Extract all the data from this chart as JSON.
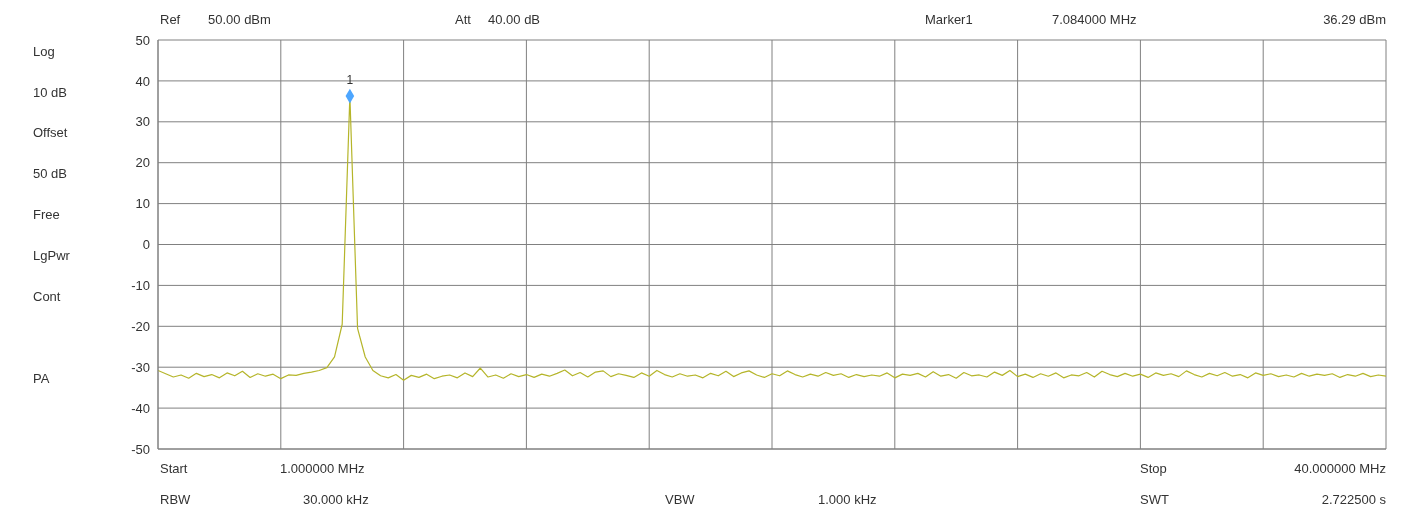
{
  "chart_data": {
    "type": "line",
    "annotations": [
      "Ref",
      "50.00 dBm",
      "Att",
      "40.00 dB",
      "Marker1",
      "7.084000 MHz",
      "36.29 dBm",
      "Log",
      "10 dB",
      "Offset",
      "50 dB",
      "Free",
      "LgPwr",
      "Cont",
      "PA",
      "Start",
      "1.000000 MHz",
      "Stop",
      "40.000000 MHz",
      "RBW",
      "30.000 kHz",
      "VBW",
      "1.000 kHz",
      "SWT",
      "2.722500 s",
      {
        "text": "1",
        "y": 36.29
      }
    ],
    "categories": [
      null,
      null,
      null,
      null,
      null,
      null,
      null,
      null,
      null,
      null,
      null,
      null,
      null,
      null,
      null,
      null,
      null,
      null,
      null,
      null,
      null,
      null,
      null,
      null,
      null,
      null,
      null,
      null,
      null,
      null,
      null,
      null,
      null,
      null,
      null,
      null,
      null,
      null,
      null,
      null,
      null,
      null,
      null,
      null,
      null,
      null,
      null,
      null,
      null,
      null,
      null,
      null,
      null,
      null,
      null,
      null,
      null,
      null,
      null,
      null,
      null,
      null,
      null,
      null,
      null,
      null,
      null,
      null,
      null,
      null,
      null,
      null,
      null,
      null,
      null,
      null,
      null,
      null,
      null,
      null,
      null,
      null,
      null,
      null,
      null,
      null,
      null,
      null,
      null,
      null,
      null,
      null,
      null,
      null,
      null,
      null,
      null,
      null,
      null,
      null,
      null,
      null,
      null,
      null,
      null,
      null,
      null,
      null,
      null,
      null,
      null,
      null,
      null,
      null,
      null,
      null,
      null,
      null,
      null,
      null,
      null,
      null,
      null,
      null,
      null,
      null,
      null,
      null,
      null,
      null,
      null,
      null,
      null,
      null,
      null,
      null,
      null,
      null,
      null,
      null,
      null,
      null,
      null,
      null,
      null,
      null,
      null,
      null,
      null,
      null,
      null,
      null,
      null,
      null,
      null,
      null,
      null,
      null,
      null,
      null,
      null
    ],
    "series": [
      {
        "color": "#b5b52a",
        "values": [
          -30.8,
          -31.6,
          -32.4,
          -31.9,
          -32.7,
          -31.5,
          -32.3,
          -31.8,
          -32.6,
          -31.4,
          -32.1,
          -31.0,
          -32.5,
          -31.6,
          -32.2,
          -31.7,
          -32.8,
          -31.9,
          -32.0,
          -31.5,
          -31.2,
          -30.8,
          -30.1,
          -27.5,
          -19.5,
          36.29,
          -20.5,
          -27.5,
          -30.8,
          -32.1,
          -32.6,
          -31.8,
          -33.2,
          -32.0,
          -32.5,
          -31.7,
          -32.8,
          -32.2,
          -31.9,
          -32.6,
          -31.4,
          -32.3,
          -30.2,
          -32.4,
          -31.9,
          -32.7,
          -31.6,
          -32.3,
          -31.8,
          -32.5,
          -31.7,
          -32.2,
          -31.5,
          -30.7,
          -32.1,
          -31.3,
          -32.4,
          -31.2,
          -30.9,
          -32.3,
          -31.6,
          -32.0,
          -32.5,
          -31.4,
          -32.2,
          -30.8,
          -31.8,
          -32.4,
          -31.6,
          -32.2,
          -31.9,
          -32.6,
          -31.5,
          -32.1,
          -31.0,
          -32.3,
          -31.4,
          -30.9,
          -31.9,
          -32.5,
          -31.6,
          -32.1,
          -30.9,
          -31.8,
          -32.4,
          -31.7,
          -32.2,
          -31.3,
          -32.0,
          -31.6,
          -32.5,
          -31.8,
          -32.3,
          -31.9,
          -32.2,
          -31.4,
          -32.6,
          -31.7,
          -32.0,
          -31.5,
          -32.4,
          -31.1,
          -32.2,
          -31.8,
          -32.7,
          -31.3,
          -32.1,
          -31.9,
          -32.4,
          -31.2,
          -32.0,
          -30.8,
          -32.3,
          -31.7,
          -32.5,
          -31.6,
          -32.2,
          -31.4,
          -32.6,
          -31.9,
          -32.1,
          -31.3,
          -32.4,
          -31.0,
          -31.8,
          -32.3,
          -31.5,
          -32.2,
          -31.7,
          -32.5,
          -31.4,
          -32.0,
          -31.6,
          -32.3,
          -30.9,
          -31.8,
          -32.4,
          -31.5,
          -32.1,
          -31.3,
          -32.2,
          -31.8,
          -32.6,
          -31.4,
          -32.0,
          -31.6,
          -32.3,
          -31.9,
          -32.4,
          -31.5,
          -32.2,
          -31.7,
          -32.0,
          -31.6,
          -32.5,
          -31.8,
          -32.2,
          -31.5,
          -32.3,
          -31.9,
          -32.2
        ]
      },
      {
        "type": "scatter",
        "color": "#4da6ff",
        "marker": "diamond",
        "values": [
          null,
          null,
          null,
          null,
          null,
          null,
          null,
          null,
          null,
          null,
          null,
          null,
          null,
          null,
          null,
          null,
          null,
          null,
          null,
          null,
          null,
          null,
          null,
          null,
          null,
          36.29,
          null,
          null,
          null,
          null,
          null,
          null,
          null,
          null,
          null,
          null,
          null,
          null,
          null,
          null,
          null,
          null,
          null,
          null,
          null,
          null,
          null,
          null,
          null,
          null,
          null,
          null,
          null,
          null,
          null,
          null,
          null,
          null,
          null,
          null,
          null,
          null,
          null,
          null,
          null,
          null,
          null,
          null,
          null,
          null,
          null,
          null,
          null,
          null,
          null,
          null,
          null,
          null,
          null,
          null,
          null,
          null,
          null,
          null,
          null,
          null,
          null,
          null,
          null,
          null,
          null,
          null,
          null,
          null,
          null,
          null,
          null,
          null,
          null,
          null,
          null,
          null,
          null,
          null,
          null,
          null,
          null,
          null,
          null,
          null,
          null,
          null,
          null,
          null,
          null,
          null,
          null,
          null,
          null,
          null,
          null,
          null,
          null,
          null,
          null,
          null,
          null,
          null,
          null,
          null,
          null,
          null,
          null,
          null,
          null,
          null,
          null,
          null,
          null,
          null,
          null,
          null,
          null,
          null,
          null,
          null,
          null,
          null,
          null,
          null,
          null,
          null,
          null,
          null,
          null,
          null,
          null,
          null,
          null,
          null,
          null
        ]
      }
    ],
    "ylim": [
      -50,
      50
    ],
    "yticks": [
      -50,
      -40,
      -30,
      -20,
      -10,
      0,
      10,
      20,
      30,
      40,
      50
    ],
    "grid": true,
    "tick_labels": "y"
  }
}
